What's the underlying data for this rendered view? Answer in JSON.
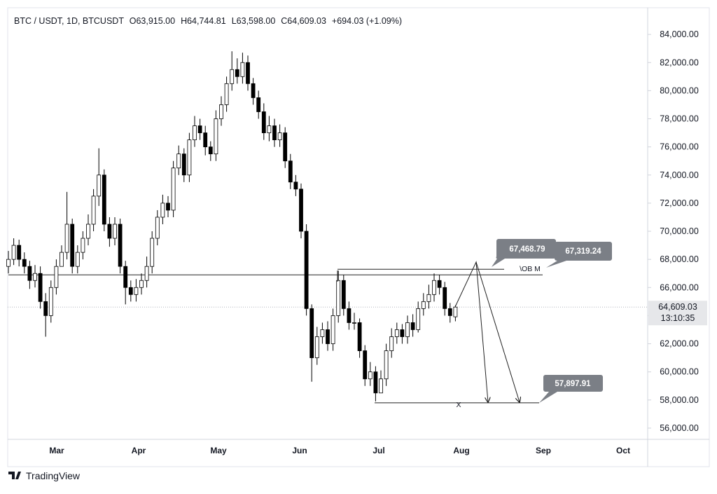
{
  "chart_data": {
    "type": "candlestick",
    "header": [
      "BTC / USDT, 1D, BTCUSDT",
      "O63,915.00",
      "H64,744.81",
      "L63,598.00",
      "C64,609.03",
      "+694.03 (+1.09%)"
    ],
    "x_labels": [
      "Mar",
      "Apr",
      "May",
      "Jun",
      "Jul",
      "Aug",
      "Sep",
      "Oct"
    ],
    "open": [
      67500,
      68000,
      69000,
      68000,
      67500,
      66500,
      67000,
      65000,
      64000,
      66000,
      67500,
      68500,
      70500,
      67500,
      68500,
      69500,
      70500,
      72500,
      74000,
      70500,
      69500,
      70500,
      67500,
      66000,
      65500,
      66000,
      66500,
      67500,
      69500,
      71000,
      72000,
      71500,
      74500,
      75500,
      74000,
      76500,
      77500,
      77000,
      76000,
      75500,
      78000,
      79000,
      80500,
      81500,
      81000,
      82000,
      80500,
      79500,
      78500,
      77000,
      77500,
      76500,
      77000,
      75000,
      73500,
      73000,
      70000,
      64500,
      61000,
      62500,
      63000,
      62000,
      64000,
      66500,
      64500,
      63500,
      63500,
      61500,
      59500,
      60000,
      58500,
      59500,
      61500,
      62500,
      63000,
      62500,
      63500,
      63000,
      64500,
      65000,
      65500,
      66500,
      66000,
      64500,
      63915
    ],
    "high": [
      68600,
      69500,
      69400,
      68500,
      67900,
      67600,
      67500,
      65600,
      66500,
      68000,
      69000,
      72800,
      70900,
      69000,
      70000,
      71200,
      73000,
      75900,
      74400,
      71000,
      71000,
      70900,
      67900,
      66500,
      66600,
      67000,
      68200,
      70000,
      71500,
      72600,
      72500,
      75000,
      76100,
      75900,
      77000,
      78200,
      78000,
      77500,
      76400,
      78600,
      79600,
      81000,
      82800,
      82300,
      82700,
      82500,
      80900,
      80000,
      79100,
      78200,
      78000,
      77600,
      77400,
      75500,
      74000,
      73400,
      70500,
      64800,
      63200,
      63500,
      63600,
      64500,
      67200,
      66900,
      65000,
      64200,
      63800,
      61900,
      60700,
      60400,
      60100,
      62000,
      63100,
      63500,
      63400,
      64000,
      64100,
      65000,
      65600,
      66200,
      67000,
      66900,
      66400,
      64900,
      64744.81
    ],
    "low": [
      67000,
      67600,
      67500,
      67000,
      65900,
      66000,
      64500,
      62500,
      63500,
      65500,
      67800,
      68000,
      67000,
      67000,
      68000,
      69000,
      70000,
      71800,
      70000,
      68900,
      69000,
      67000,
      64800,
      65000,
      65000,
      65500,
      66000,
      67000,
      69000,
      70500,
      71000,
      71000,
      74000,
      73500,
      73500,
      76000,
      76500,
      75400,
      75000,
      75000,
      77500,
      78500,
      80000,
      80500,
      80500,
      80000,
      79000,
      78000,
      76500,
      76400,
      76000,
      76000,
      74500,
      73000,
      72500,
      69500,
      64000,
      59300,
      60500,
      62000,
      61500,
      61500,
      63500,
      64000,
      63000,
      63000,
      61000,
      59000,
      59000,
      57900,
      58500,
      59000,
      61000,
      62000,
      62000,
      62000,
      62500,
      62800,
      64000,
      64500,
      65000,
      65500,
      64000,
      63500,
      63598
    ],
    "close": [
      68000,
      69000,
      68000,
      67500,
      66500,
      67000,
      65000,
      64000,
      66000,
      67500,
      68500,
      70500,
      67500,
      68500,
      69500,
      70500,
      72500,
      74000,
      70500,
      69500,
      70500,
      67500,
      66000,
      65500,
      66000,
      66500,
      67500,
      69500,
      71000,
      72000,
      71500,
      74500,
      75500,
      74000,
      76500,
      77500,
      77000,
      76000,
      75500,
      78000,
      79000,
      80500,
      81500,
      81000,
      82000,
      80500,
      79500,
      78500,
      77000,
      77500,
      76500,
      77000,
      75000,
      73500,
      73000,
      70000,
      64500,
      61000,
      62500,
      63000,
      62000,
      64000,
      66500,
      64500,
      63500,
      63500,
      61500,
      59500,
      60000,
      58500,
      59500,
      61500,
      62500,
      63000,
      62500,
      63500,
      63000,
      64500,
      65000,
      65500,
      66500,
      66000,
      64500,
      64000,
      64609.03
    ],
    "up_color": "#ffffff",
    "down_color": "#000000",
    "ylim": [
      55300,
      85850
    ],
    "yticks": [
      {
        "value": 56000,
        "label": "56,000.00"
      },
      {
        "value": 58000,
        "label": "58,000.00"
      },
      {
        "value": 60000,
        "label": "60,000.00"
      },
      {
        "value": 62000,
        "label": "62,000.00"
      },
      {
        "value": 64000,
        "label": "64,000.00"
      },
      {
        "value": 66000,
        "label": "66,000.00"
      },
      {
        "value": 68000,
        "label": "68,000.00"
      },
      {
        "value": 70000,
        "label": "70,000.00"
      },
      {
        "value": 72000,
        "label": "72,000.00"
      },
      {
        "value": 74000,
        "label": "74,000.00"
      },
      {
        "value": 76000,
        "label": "76,000.00"
      },
      {
        "value": 78000,
        "label": "78,000.00"
      },
      {
        "value": 80000,
        "label": "80,000.00"
      },
      {
        "value": 82000,
        "label": "82,000.00"
      },
      {
        "value": 84000,
        "label": "84,000.00"
      }
    ],
    "last_price": {
      "value": 64609.03,
      "label": "64,609.03"
    },
    "countdown": "13:10:35",
    "levels": [
      66900,
      67300,
      57800
    ],
    "annotations": [
      "67,468.79",
      "67,319.24",
      "57,897.91",
      "\\OB M",
      "X"
    ],
    "brand": "TradingView"
  }
}
